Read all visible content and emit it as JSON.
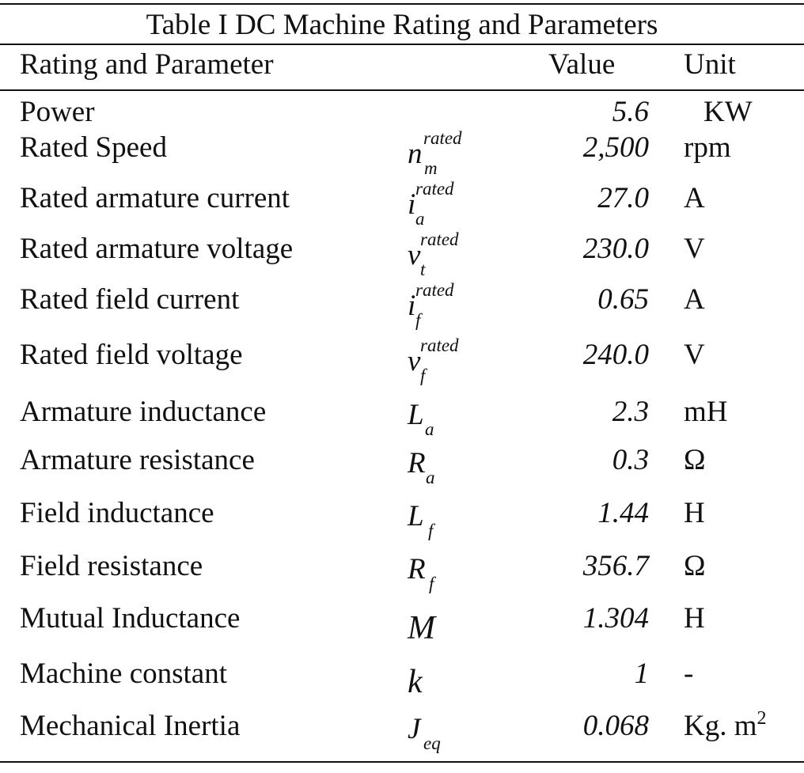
{
  "table": {
    "caption": "Table I DC Machine Rating and Parameters",
    "headers": {
      "parameter": "Rating and Parameter",
      "value": "Value",
      "unit": "Unit"
    },
    "rows": [
      {
        "parameter": "Power",
        "symbol_base": "",
        "symbol_sup": "",
        "symbol_sub": "",
        "value": "5.6",
        "unit": "KW"
      },
      {
        "parameter": "Rated Speed",
        "symbol_base": "n",
        "symbol_sup": "rated",
        "symbol_sub": "m",
        "value": "2,500",
        "unit": "rpm"
      },
      {
        "parameter": "Rated armature current",
        "symbol_base": "i",
        "symbol_sup": "rated",
        "symbol_sub": "a",
        "value": "27.0",
        "unit": "A"
      },
      {
        "parameter": "Rated armature voltage",
        "symbol_base": "v",
        "symbol_sup": "rated",
        "symbol_sub": "t",
        "value": "230.0",
        "unit": "V"
      },
      {
        "parameter": "Rated field current",
        "symbol_base": "i",
        "symbol_sup": "rated",
        "symbol_sub": "f",
        "value": "0.65",
        "unit": "A"
      },
      {
        "parameter": "Rated field voltage",
        "symbol_base": "v",
        "symbol_sup": "rated",
        "symbol_sub": "f",
        "value": "240.0",
        "unit": "V"
      },
      {
        "parameter": "Armature inductance",
        "symbol_base": "L",
        "symbol_sup": "",
        "symbol_sub": "a",
        "value": "2.3",
        "unit": "mH"
      },
      {
        "parameter": "Armature resistance",
        "symbol_base": "R",
        "symbol_sup": "",
        "symbol_sub": "a",
        "value": "0.3",
        "unit": "Ω"
      },
      {
        "parameter": "Field inductance",
        "symbol_base": "L",
        "symbol_sup": "",
        "symbol_sub": "f",
        "value": "1.44",
        "unit": "H"
      },
      {
        "parameter": "Field resistance",
        "symbol_base": "R",
        "symbol_sup": "",
        "symbol_sub": "f",
        "value": "356.7",
        "unit": "Ω"
      },
      {
        "parameter": "Mutual Inductance",
        "symbol_base": "M",
        "symbol_sup": "",
        "symbol_sub": "",
        "value": "1.304",
        "unit": "H"
      },
      {
        "parameter": "Machine constant",
        "symbol_base": "k",
        "symbol_sup": "",
        "symbol_sub": "",
        "value": "1",
        "unit": "-"
      },
      {
        "parameter": "Mechanical Inertia",
        "symbol_base": "J",
        "symbol_sup": "",
        "symbol_sub": "eq",
        "value": "0.068",
        "unit": "Kg. m",
        "unit_sup": "2"
      }
    ]
  }
}
